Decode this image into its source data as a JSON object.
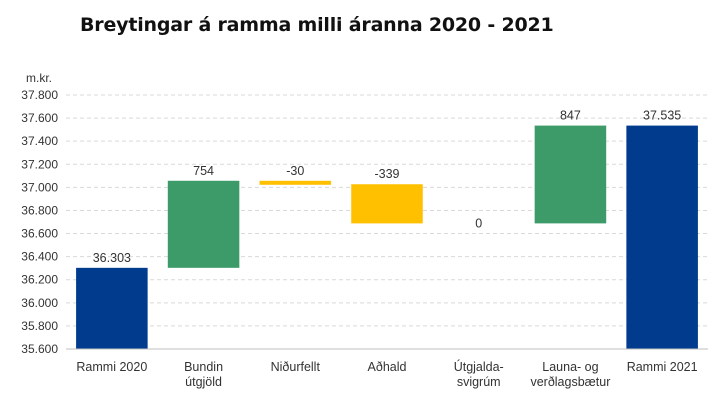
{
  "chart_data": {
    "type": "bar",
    "subtype": "waterfall",
    "title": "Breytingar á ramma milli áranna 2020 - 2021",
    "ylabel": "m.kr.",
    "ylim": [
      35600,
      37800
    ],
    "yticks": [
      "35.600",
      "35.800",
      "36.000",
      "36.200",
      "36.400",
      "36.600",
      "36.800",
      "37.000",
      "37.200",
      "37.400",
      "37.600",
      "37.800"
    ],
    "ytick_values": [
      35600,
      35800,
      36000,
      36200,
      36400,
      36600,
      36800,
      37000,
      37200,
      37400,
      37600,
      37800
    ],
    "grid": true,
    "categories": [
      [
        "Rammi 2020"
      ],
      [
        "Bundin",
        "útgjöld"
      ],
      [
        "Niðurfellt"
      ],
      [
        "Aðhald"
      ],
      [
        "Útgjalda-",
        "svigrúm"
      ],
      [
        "Launa- og",
        "verðlagsbætur"
      ],
      [
        "Rammi 2021"
      ]
    ],
    "bars": [
      {
        "kind": "total",
        "start": 35600,
        "end": 36303,
        "label": "36.303",
        "color": "#003b8e"
      },
      {
        "kind": "increase",
        "start": 36303,
        "end": 37057,
        "label": "754",
        "color": "#3d9b6a"
      },
      {
        "kind": "decrease",
        "start": 37057,
        "end": 37027,
        "label": "-30",
        "color": "#ffc000"
      },
      {
        "kind": "decrease",
        "start": 37027,
        "end": 36688,
        "label": "-339",
        "color": "#ffc000"
      },
      {
        "kind": "increase",
        "start": 36688,
        "end": 36688,
        "label": "0",
        "color": "#3d9b6a"
      },
      {
        "kind": "increase",
        "start": 36688,
        "end": 37535,
        "label": "847",
        "color": "#3d9b6a"
      },
      {
        "kind": "total",
        "start": 35600,
        "end": 37535,
        "label": "37.535",
        "color": "#003b8e"
      }
    ]
  }
}
